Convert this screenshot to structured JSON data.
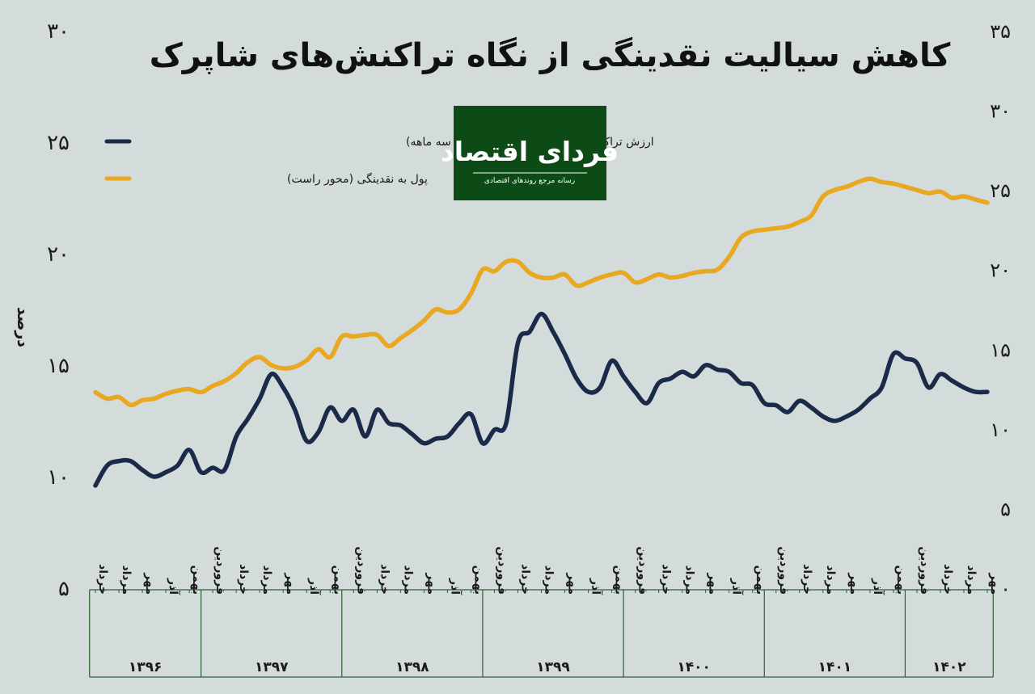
{
  "chart_data": {
    "type": "line",
    "title": "کاهش سیالیت نقدینگی از نگاه تراکنش‌های شاپرک",
    "ylabel": "درصد",
    "ylim": [
      5,
      30
    ],
    "yticks": [
      "۵",
      "۱۰",
      "۱۵",
      "۲۰",
      "۲۵",
      "۳۰"
    ],
    "y2lim": [
      0,
      35
    ],
    "y2ticks": [
      "۰",
      "۵",
      "۱۰",
      "۱۵",
      "۲۰",
      "۲۵",
      "۳۰",
      "۳۵"
    ],
    "legend_placement": "top-left",
    "grid": false,
    "x_range": [
      0,
      74
    ],
    "x_ticks": [
      {
        "x": 0,
        "label": "خرداد"
      },
      {
        "x": 2,
        "label": "مرداد"
      },
      {
        "x": 4,
        "label": "مهر"
      },
      {
        "x": 6,
        "label": "آذر"
      },
      {
        "x": 8,
        "label": "بهمن"
      },
      {
        "x": 10,
        "label": "فروردین"
      },
      {
        "x": 12,
        "label": "خرداد"
      },
      {
        "x": 14,
        "label": "مرداد"
      },
      {
        "x": 16,
        "label": "مهر"
      },
      {
        "x": 18,
        "label": "آذر"
      },
      {
        "x": 20,
        "label": "بهمن"
      },
      {
        "x": 22,
        "label": "فروردین"
      },
      {
        "x": 24,
        "label": "خرداد"
      },
      {
        "x": 26,
        "label": "مرداد"
      },
      {
        "x": 28,
        "label": "مهر"
      },
      {
        "x": 30,
        "label": "آذر"
      },
      {
        "x": 32,
        "label": "بهمن"
      },
      {
        "x": 34,
        "label": "فروردین"
      },
      {
        "x": 36,
        "label": "خرداد"
      },
      {
        "x": 38,
        "label": "مرداد"
      },
      {
        "x": 40,
        "label": "مهر"
      },
      {
        "x": 42,
        "label": "آذر"
      },
      {
        "x": 44,
        "label": "بهمن"
      },
      {
        "x": 46,
        "label": "فروردین"
      },
      {
        "x": 48,
        "label": "خرداد"
      },
      {
        "x": 50,
        "label": "مرداد"
      },
      {
        "x": 52,
        "label": "مهر"
      },
      {
        "x": 54,
        "label": "آذر"
      },
      {
        "x": 56,
        "label": "بهمن"
      },
      {
        "x": 58,
        "label": "فروردین"
      },
      {
        "x": 60,
        "label": "خرداد"
      },
      {
        "x": 62,
        "label": "مرداد"
      },
      {
        "x": 64,
        "label": "مهر"
      },
      {
        "x": 66,
        "label": "آذر"
      },
      {
        "x": 68,
        "label": "بهمن"
      },
      {
        "x": 70,
        "label": "فروردین"
      },
      {
        "x": 72,
        "label": "خرداد"
      },
      {
        "x": 74,
        "label": "مرداد"
      },
      {
        "x": 76,
        "label": "مهر"
      }
    ],
    "years": [
      {
        "label": "۱۳۹۶",
        "from": -0.5,
        "to": 9
      },
      {
        "label": "۱۳۹۷",
        "from": 9,
        "to": 21
      },
      {
        "label": "۱۳۹۸",
        "from": 21,
        "to": 33
      },
      {
        "label": "۱۳۹۹",
        "from": 33,
        "to": 45
      },
      {
        "label": "۱۴۰۰",
        "from": 45,
        "to": 57
      },
      {
        "label": "۱۴۰۱",
        "from": 57,
        "to": 69
      },
      {
        "label": "۱۴۰۲",
        "from": 69,
        "to": 76.5
      }
    ],
    "series": [
      {
        "name": "ارزش تراکنش شاپرک به نقدینگی (میانگین سه ماهه)",
        "axis": "left",
        "color": "#1c2a49",
        "x": [
          0,
          1,
          2,
          3,
          4,
          5,
          6,
          7,
          8,
          9,
          10,
          11,
          12,
          13,
          14,
          15,
          16,
          17,
          18,
          19,
          20,
          21,
          22,
          23,
          24,
          25,
          26,
          27,
          28,
          29,
          30,
          31,
          32,
          33,
          34,
          35,
          36,
          37,
          38,
          39,
          40,
          41,
          42,
          43,
          44,
          45,
          46,
          47,
          48,
          49,
          50,
          51,
          52,
          53,
          54,
          55,
          56,
          57,
          58,
          59,
          60,
          61,
          62,
          63,
          64,
          65,
          66,
          67,
          68,
          69,
          70,
          71,
          72,
          73,
          74,
          75,
          76
        ],
        "values": [
          9.6,
          10.5,
          10.7,
          10.7,
          10.3,
          10.0,
          10.2,
          10.5,
          11.2,
          10.2,
          10.4,
          10.3,
          11.8,
          12.6,
          13.5,
          14.6,
          14.0,
          13.0,
          11.6,
          12.0,
          13.1,
          12.5,
          13.0,
          11.8,
          13.0,
          12.4,
          12.3,
          11.9,
          11.5,
          11.7,
          11.8,
          12.4,
          12.8,
          11.5,
          12.1,
          12.4,
          16.0,
          16.5,
          17.3,
          16.5,
          15.5,
          14.4,
          13.8,
          14.0,
          15.2,
          14.5,
          13.8,
          13.3,
          14.2,
          14.4,
          14.7,
          14.5,
          15.0,
          14.8,
          14.7,
          14.2,
          14.1,
          13.3,
          13.2,
          12.9,
          13.4,
          13.1,
          12.7,
          12.5,
          12.7,
          13.0,
          13.5,
          14.0,
          15.5,
          15.3,
          15.1,
          14.0,
          14.6,
          14.3,
          14.0,
          13.8,
          13.8
        ]
      },
      {
        "name": "پول به نقدینگی (محور راست)",
        "axis": "right",
        "color": "#e9a821",
        "x": [
          0,
          1,
          2,
          3,
          4,
          5,
          6,
          7,
          8,
          9,
          10,
          11,
          12,
          13,
          14,
          15,
          16,
          17,
          18,
          19,
          20,
          21,
          22,
          23,
          24,
          25,
          26,
          27,
          28,
          29,
          30,
          31,
          32,
          33,
          34,
          35,
          36,
          37,
          38,
          39,
          40,
          41,
          42,
          43,
          44,
          45,
          46,
          47,
          48,
          49,
          50,
          51,
          52,
          53,
          54,
          55,
          56,
          57,
          58,
          59,
          60,
          61,
          62,
          63,
          64,
          65,
          66,
          67,
          68,
          69,
          70,
          71,
          72,
          73,
          74,
          75,
          76
        ],
        "values": [
          12.3,
          11.9,
          12.0,
          11.5,
          11.8,
          11.9,
          12.2,
          12.4,
          12.5,
          12.3,
          12.7,
          13.0,
          13.5,
          14.2,
          14.5,
          14.0,
          13.8,
          13.9,
          14.3,
          15.0,
          14.5,
          15.8,
          15.8,
          15.9,
          15.9,
          15.2,
          15.7,
          16.2,
          16.8,
          17.5,
          17.3,
          17.5,
          18.5,
          20.0,
          19.9,
          20.5,
          20.5,
          19.8,
          19.5,
          19.5,
          19.7,
          19.0,
          19.2,
          19.5,
          19.7,
          19.8,
          19.2,
          19.4,
          19.7,
          19.5,
          19.6,
          19.8,
          19.9,
          20.0,
          20.8,
          22.0,
          22.4,
          22.5,
          22.6,
          22.7,
          23.0,
          23.4,
          24.6,
          25.0,
          25.2,
          25.5,
          25.7,
          25.5,
          25.4,
          25.2,
          25.0,
          24.8,
          24.9,
          24.5,
          24.6,
          24.4,
          24.2
        ]
      }
    ]
  },
  "logo": {
    "main": "فردای اقتصاد",
    "sub": "رسانه مرجع روندهای اقتصادی",
    "bg": "#0c4a16"
  }
}
